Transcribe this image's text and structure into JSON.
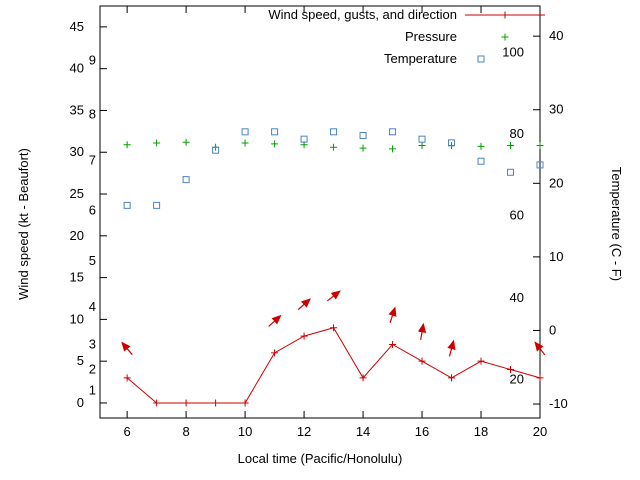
{
  "chart_data": {
    "type": "line",
    "xlabel": "Local time (Pacific/Honolulu)",
    "ylabel_left": "Wind speed (kt - Beaufort)",
    "ylabel_right": "Temperature (C - F)",
    "x_values": [
      6,
      7,
      8,
      9,
      10,
      11,
      12,
      13,
      14,
      15,
      16,
      17,
      18,
      19,
      20
    ],
    "series": [
      {
        "id": "wind",
        "name": "Wind speed, gusts, and direction",
        "color": "#cc0000",
        "marker": "plus",
        "line": true,
        "axis": "left",
        "values": [
          3,
          0,
          0,
          0,
          0,
          6,
          8,
          9,
          3,
          7,
          5,
          3,
          5,
          4,
          3
        ]
      },
      {
        "id": "pressure",
        "name": "Pressure",
        "color": "#00a000",
        "marker": "plus",
        "line": false,
        "axis": "left",
        "values": [
          30.9,
          31.1,
          31.2,
          30.6,
          31.1,
          31.0,
          30.9,
          30.6,
          30.5,
          30.4,
          30.8,
          30.8,
          30.7,
          30.8,
          30.8
        ]
      },
      {
        "id": "temperature",
        "name": "Temperature",
        "color": "#4b83c3",
        "marker": "square",
        "line": false,
        "axis": "right",
        "values": [
          17,
          17,
          20.5,
          24.5,
          27,
          27,
          26,
          27,
          26.5,
          27,
          26,
          25.5,
          23,
          21.5,
          22.5
        ]
      }
    ],
    "gust_arrows": [
      {
        "x": 6,
        "y": 6.5,
        "angle": 130
      },
      {
        "x": 11,
        "y": 9.8,
        "angle": 42
      },
      {
        "x": 12,
        "y": 11.8,
        "angle": 42
      },
      {
        "x": 13,
        "y": 12.8,
        "angle": 38
      },
      {
        "x": 15,
        "y": 10.5,
        "angle": 72
      },
      {
        "x": 16,
        "y": 8.5,
        "angle": 80
      },
      {
        "x": 17,
        "y": 6.5,
        "angle": 75
      },
      {
        "x": 20,
        "y": 6.5,
        "angle": 128
      }
    ],
    "x_ticks": [
      6,
      8,
      10,
      12,
      14,
      16,
      18,
      20
    ],
    "y_left_ticks": [
      0,
      5,
      10,
      15,
      20,
      25,
      30,
      35,
      40,
      45
    ],
    "y_right_ticks": [
      -10,
      0,
      10,
      20,
      30,
      40
    ],
    "x_range": [
      5.08,
      20
    ],
    "y_left_range": [
      -1.8,
      47.5
    ],
    "y_right_range": [
      -11.9,
      44.1
    ],
    "beaufort_labels": [
      {
        "label": "1",
        "kt": 1.5
      },
      {
        "label": "2",
        "kt": 4
      },
      {
        "label": "3",
        "kt": 7
      },
      {
        "label": "4",
        "kt": 11.5
      },
      {
        "label": "5",
        "kt": 17
      },
      {
        "label": "6",
        "kt": 23
      },
      {
        "label": "7",
        "kt": 29
      },
      {
        "label": "8",
        "kt": 34.5
      },
      {
        "label": "9",
        "kt": 41
      }
    ],
    "fahrenheit_labels": [
      {
        "label": "20",
        "c": -6.7
      },
      {
        "label": "40",
        "c": 4.4
      },
      {
        "label": "60",
        "c": 15.6
      },
      {
        "label": "80",
        "c": 26.7
      },
      {
        "label": "100",
        "c": 37.8
      }
    ],
    "legend_position": "top-right-inside",
    "grid": false,
    "background": "#ffffff",
    "axis_color": "#000000"
  }
}
